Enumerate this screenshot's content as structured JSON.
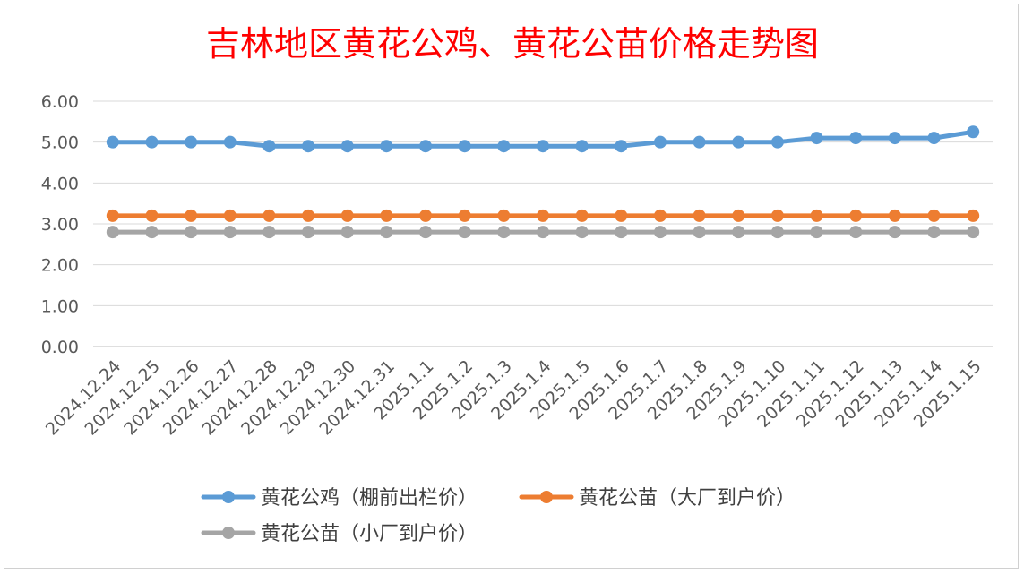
{
  "chart_data": {
    "type": "line",
    "title": "吉林地区黄花公鸡、黄花公苗价格走势图",
    "xlabel": "",
    "ylabel": "",
    "categories": [
      "2024.12.24",
      "2024.12.25",
      "2024.12.26",
      "2024.12.27",
      "2024.12.28",
      "2024.12.29",
      "2024.12.30",
      "2024.12.31",
      "2025.1.1",
      "2025.1.2",
      "2025.1.3",
      "2025.1.4",
      "2025.1.5",
      "2025.1.6",
      "2025.1.7",
      "2025.1.8",
      "2025.1.9",
      "2025.1.10",
      "2025.1.11",
      "2025.1.12",
      "2025.1.13",
      "2025.1.14",
      "2025.1.15"
    ],
    "ylim": [
      0,
      6
    ],
    "yticks": [
      "0.00",
      "1.00",
      "2.00",
      "3.00",
      "4.00",
      "5.00",
      "6.00"
    ],
    "grid": true,
    "legend_position": "bottom",
    "series": [
      {
        "name": "黄花公鸡（棚前出栏价）",
        "color": "#5b9bd5",
        "values": [
          5.0,
          5.0,
          5.0,
          5.0,
          4.9,
          4.9,
          4.9,
          4.9,
          4.9,
          4.9,
          4.9,
          4.9,
          4.9,
          4.9,
          5.0,
          5.0,
          5.0,
          5.0,
          5.1,
          5.1,
          5.1,
          5.1,
          5.25
        ]
      },
      {
        "name": "黄花公苗（大厂到户价）",
        "color": "#ed7d31",
        "values": [
          3.2,
          3.2,
          3.2,
          3.2,
          3.2,
          3.2,
          3.2,
          3.2,
          3.2,
          3.2,
          3.2,
          3.2,
          3.2,
          3.2,
          3.2,
          3.2,
          3.2,
          3.2,
          3.2,
          3.2,
          3.2,
          3.2,
          3.2
        ]
      },
      {
        "name": "黄花公苗（小厂到户价）",
        "color": "#a5a5a5",
        "values": [
          2.8,
          2.8,
          2.8,
          2.8,
          2.8,
          2.8,
          2.8,
          2.8,
          2.8,
          2.8,
          2.8,
          2.8,
          2.8,
          2.8,
          2.8,
          2.8,
          2.8,
          2.8,
          2.8,
          2.8,
          2.8,
          2.8,
          2.8
        ]
      }
    ]
  }
}
